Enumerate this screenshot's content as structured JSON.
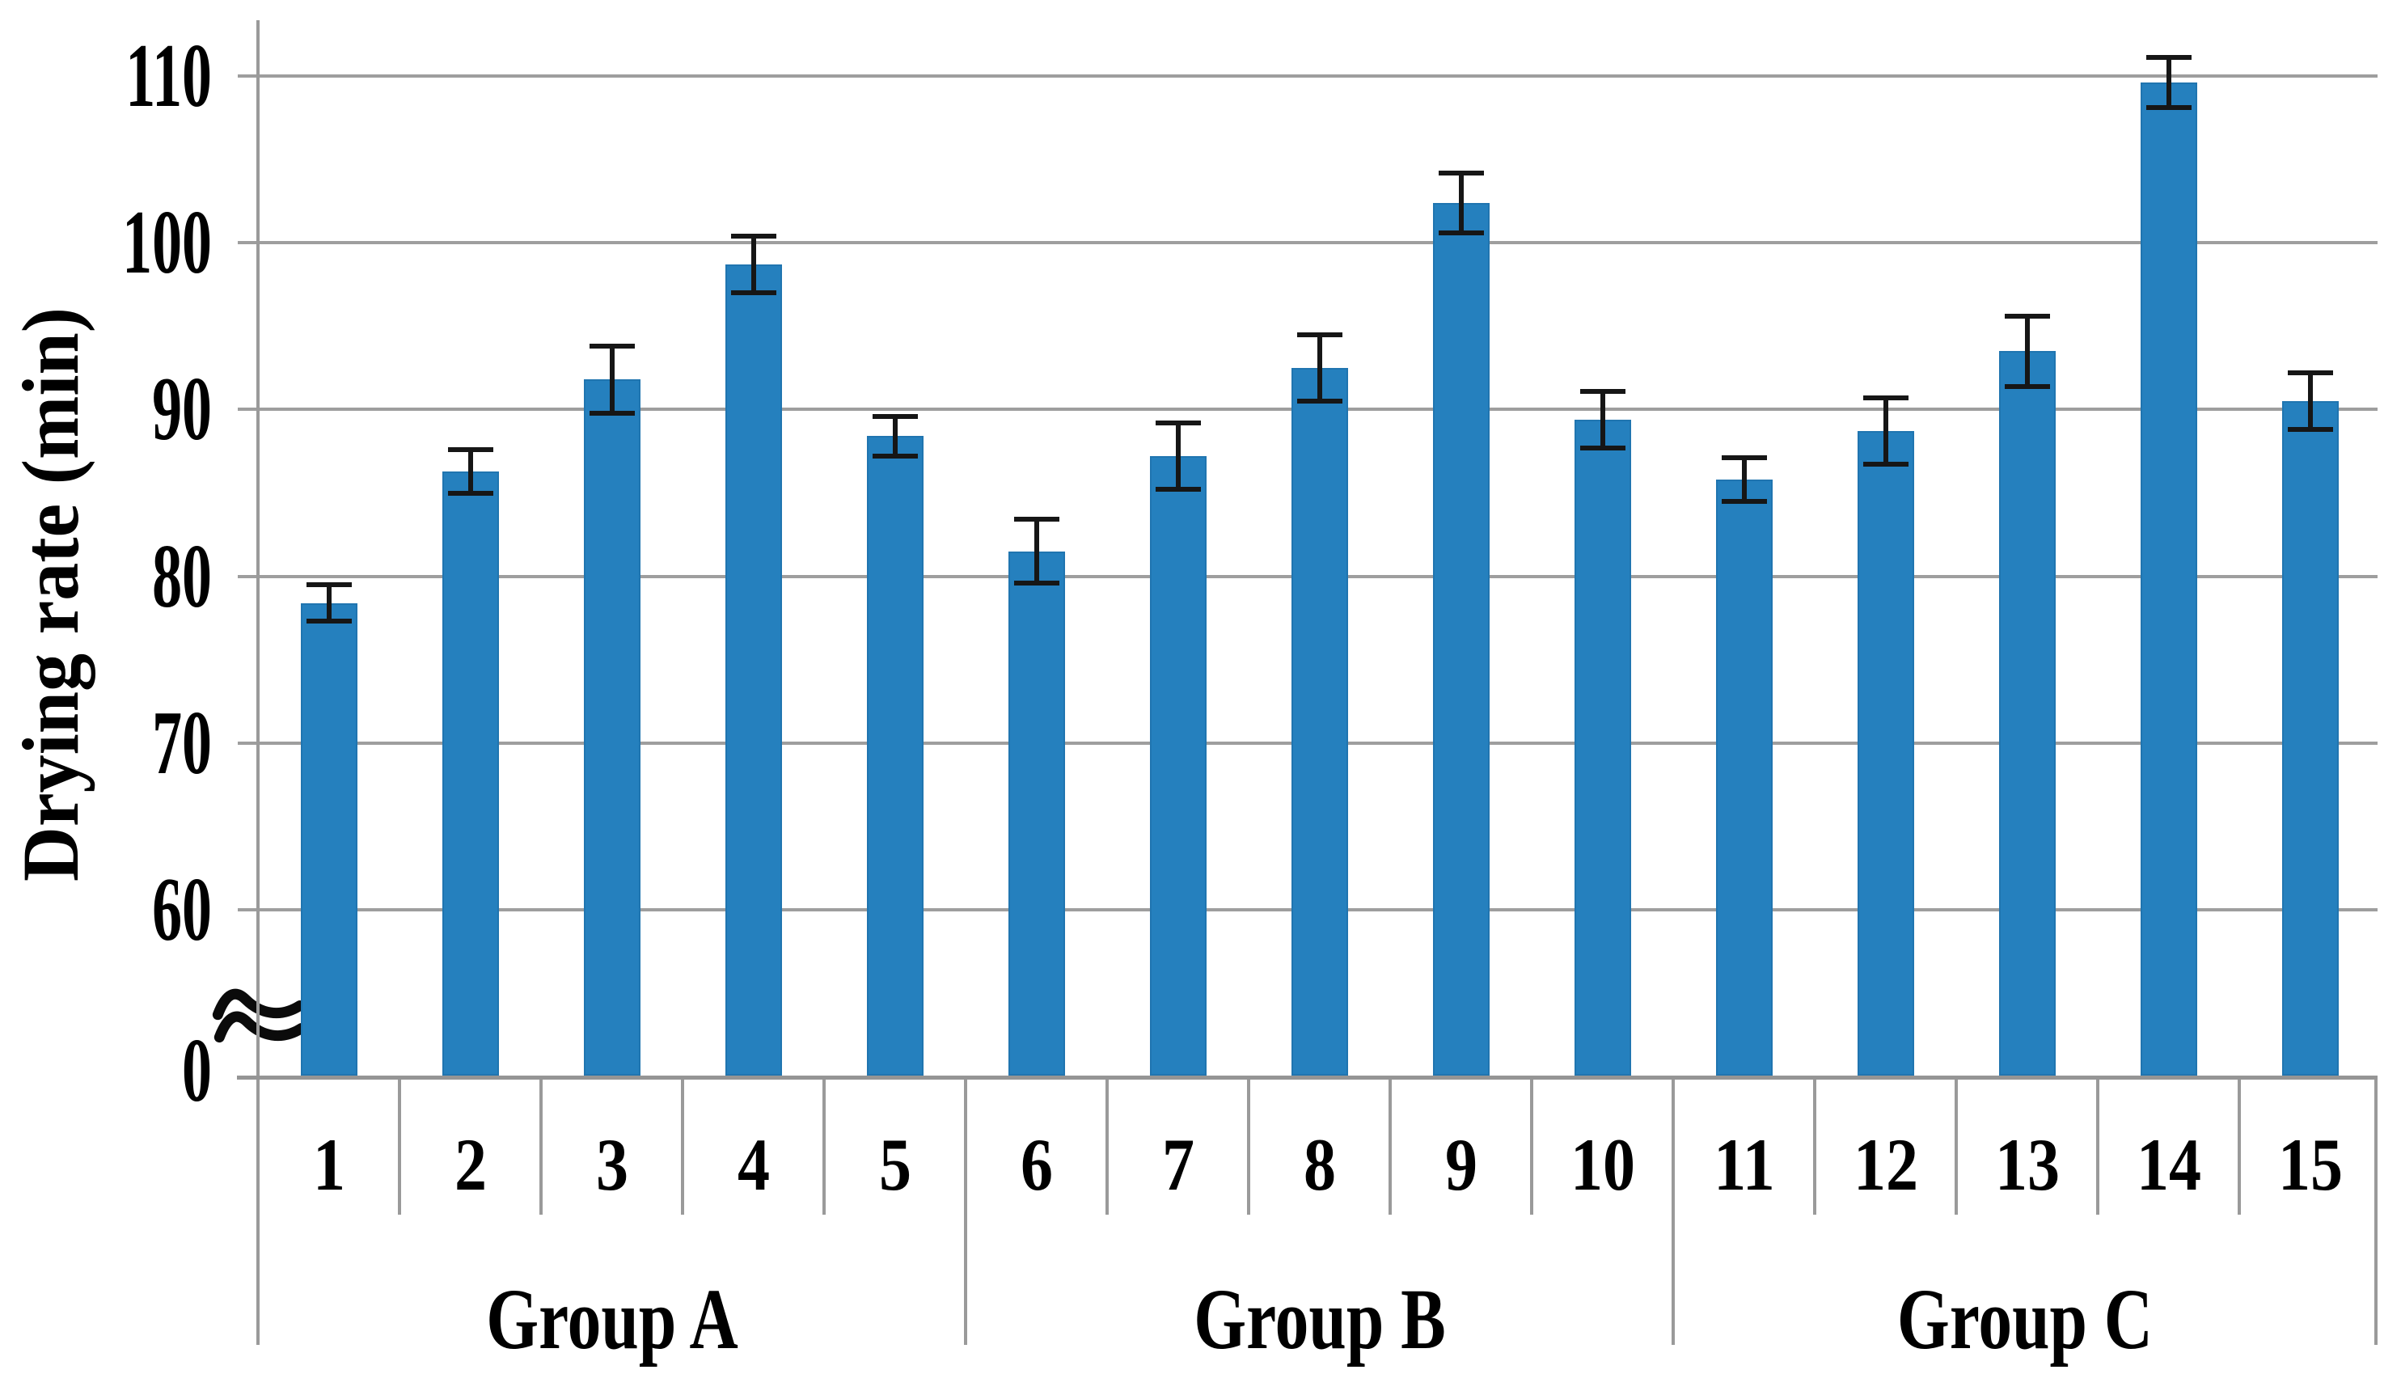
{
  "chart_data": {
    "type": "bar",
    "title": "",
    "xlabel": "",
    "ylabel": "Drying rate (min)",
    "categories": [
      "1",
      "2",
      "3",
      "4",
      "5",
      "6",
      "7",
      "8",
      "9",
      "10",
      "11",
      "12",
      "13",
      "14",
      "15"
    ],
    "values": [
      78.4,
      86.3,
      91.8,
      98.7,
      88.4,
      81.5,
      87.2,
      92.5,
      102.4,
      89.4,
      85.8,
      88.7,
      93.5,
      109.6,
      90.5
    ],
    "error_bars": [
      1.1,
      1.3,
      2.0,
      1.7,
      1.2,
      1.9,
      2.0,
      2.0,
      1.8,
      1.7,
      1.3,
      2.0,
      2.1,
      1.5,
      1.7
    ],
    "groups": [
      {
        "label": "Group A",
        "categories": [
          "1",
          "2",
          "3",
          "4",
          "5"
        ]
      },
      {
        "label": "Group B",
        "categories": [
          "6",
          "7",
          "8",
          "9",
          "10"
        ]
      },
      {
        "label": "Group C",
        "categories": [
          "11",
          "12",
          "13",
          "14",
          "15"
        ]
      }
    ],
    "y_ticks_top_to_bottom": [
      110,
      100,
      90,
      80,
      70,
      60,
      0
    ],
    "y_axis_break_between": [
      0,
      60
    ],
    "ylim_displayed": [
      60,
      110
    ],
    "grid": "horizontal",
    "legend": "none"
  },
  "colors": {
    "bar": "#2580BE",
    "gridline": "#9E9E9E",
    "axis": "#959595",
    "divider": "#9A9A9A",
    "error_bar": "#161616",
    "text": "#000000",
    "background": "#FFFFFF"
  }
}
